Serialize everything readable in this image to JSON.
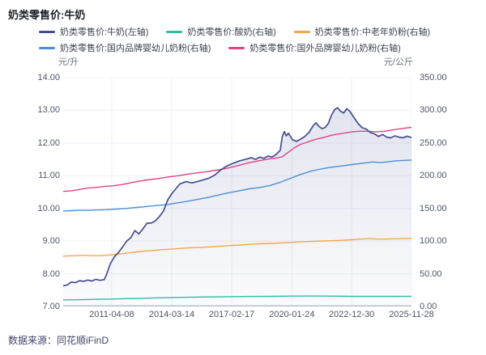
{
  "header": {
    "title": "奶类零售价:牛奶"
  },
  "units": {
    "left": "元/升",
    "right": "元/公斤"
  },
  "source": {
    "label": "数据来源：同花顺iFinD"
  },
  "colors": {
    "milk": "#434e91",
    "yogurt": "#2cbda6",
    "midage_powder": "#f3a44c",
    "domestic_infant_powder": "#4a90d5",
    "foreign_infant_powder": "#e34383",
    "grid": "#edeff6",
    "axis_line": "#b6bdc9",
    "area_fill_top": "rgba(110,122,175,0.20)",
    "area_fill_bottom": "rgba(110,122,175,0.03)"
  },
  "chart_data": {
    "type": "line",
    "title": "奶类零售价:牛奶",
    "x_axis": {
      "range": [
        2008.9,
        2025.91
      ],
      "tick_t": [
        2011.27,
        2014.2,
        2017.13,
        2020.07,
        2022.99,
        2025.91
      ],
      "tick_labels": [
        "2011-04-08",
        "2014-03-14",
        "2017-02-17",
        "2020-01-24",
        "2022-12-30",
        "2025-11-28"
      ]
    },
    "left_axis": {
      "unit": "元/升",
      "min": 7,
      "max": 14,
      "tick_labels": [
        "14.00",
        "13.00",
        "12.00",
        "11.00",
        "10.00",
        "9.00",
        "8.00",
        "7.00"
      ]
    },
    "right_axis": {
      "unit": "元/公斤",
      "min": 0,
      "max": 350,
      "tick_labels": [
        "350.00",
        "300.00",
        "250.00",
        "200.00",
        "150.00",
        "100.00",
        "50.00",
        "0.00"
      ]
    },
    "legend_rows": [
      [
        0,
        1,
        2
      ],
      [
        3,
        4
      ]
    ],
    "draw_order": [
      1,
      2,
      3,
      4,
      0
    ],
    "series": [
      {
        "name": "奶类零售价:牛奶(左轴)",
        "axis": "left",
        "color": "#434e91",
        "area": true,
        "width": 1.7,
        "points": [
          [
            2008.9,
            7.63
          ],
          [
            2009.1,
            7.66
          ],
          [
            2009.3,
            7.75
          ],
          [
            2009.5,
            7.73
          ],
          [
            2009.7,
            7.79
          ],
          [
            2009.9,
            7.77
          ],
          [
            2010.1,
            7.81
          ],
          [
            2010.3,
            7.78
          ],
          [
            2010.5,
            7.83
          ],
          [
            2010.7,
            7.8
          ],
          [
            2010.9,
            7.82
          ],
          [
            2011.0,
            7.95
          ],
          [
            2011.2,
            8.3
          ],
          [
            2011.4,
            8.52
          ],
          [
            2011.6,
            8.65
          ],
          [
            2011.8,
            8.82
          ],
          [
            2012.0,
            9.0
          ],
          [
            2012.2,
            9.1
          ],
          [
            2012.4,
            9.32
          ],
          [
            2012.6,
            9.22
          ],
          [
            2012.8,
            9.38
          ],
          [
            2013.0,
            9.55
          ],
          [
            2013.2,
            9.55
          ],
          [
            2013.4,
            9.62
          ],
          [
            2013.6,
            9.75
          ],
          [
            2013.8,
            9.92
          ],
          [
            2014.0,
            10.25
          ],
          [
            2014.2,
            10.45
          ],
          [
            2014.4,
            10.6
          ],
          [
            2014.6,
            10.75
          ],
          [
            2014.9,
            10.82
          ],
          [
            2015.2,
            10.78
          ],
          [
            2015.6,
            10.85
          ],
          [
            2016.0,
            10.92
          ],
          [
            2016.3,
            11.02
          ],
          [
            2016.6,
            11.18
          ],
          [
            2016.9,
            11.3
          ],
          [
            2017.2,
            11.38
          ],
          [
            2017.5,
            11.45
          ],
          [
            2017.8,
            11.5
          ],
          [
            2018.1,
            11.55
          ],
          [
            2018.3,
            11.5
          ],
          [
            2018.5,
            11.57
          ],
          [
            2018.7,
            11.53
          ],
          [
            2018.9,
            11.6
          ],
          [
            2019.1,
            11.57
          ],
          [
            2019.3,
            11.65
          ],
          [
            2019.5,
            11.78
          ],
          [
            2019.6,
            12.2
          ],
          [
            2019.7,
            12.35
          ],
          [
            2019.8,
            12.22
          ],
          [
            2019.9,
            12.3
          ],
          [
            2020.1,
            12.1
          ],
          [
            2020.3,
            12.05
          ],
          [
            2020.5,
            12.12
          ],
          [
            2020.7,
            12.2
          ],
          [
            2020.9,
            12.32
          ],
          [
            2021.1,
            12.52
          ],
          [
            2021.25,
            12.62
          ],
          [
            2021.4,
            12.5
          ],
          [
            2021.55,
            12.44
          ],
          [
            2021.7,
            12.48
          ],
          [
            2021.85,
            12.6
          ],
          [
            2022.0,
            12.85
          ],
          [
            2022.15,
            13.02
          ],
          [
            2022.3,
            13.08
          ],
          [
            2022.45,
            12.97
          ],
          [
            2022.6,
            12.92
          ],
          [
            2022.75,
            13.05
          ],
          [
            2022.9,
            12.97
          ],
          [
            2023.1,
            12.78
          ],
          [
            2023.3,
            12.6
          ],
          [
            2023.5,
            12.47
          ],
          [
            2023.7,
            12.43
          ],
          [
            2023.9,
            12.32
          ],
          [
            2024.1,
            12.28
          ],
          [
            2024.3,
            12.2
          ],
          [
            2024.5,
            12.26
          ],
          [
            2024.7,
            12.18
          ],
          [
            2024.9,
            12.16
          ],
          [
            2025.1,
            12.22
          ],
          [
            2025.3,
            12.18
          ],
          [
            2025.5,
            12.16
          ],
          [
            2025.7,
            12.21
          ],
          [
            2025.91,
            12.17
          ]
        ]
      },
      {
        "name": "奶类零售价:酸奶(右轴)",
        "axis": "right",
        "color": "#2cbda6",
        "area": false,
        "width": 1.4,
        "points": [
          [
            2008.9,
            10.0
          ],
          [
            2009.5,
            10.3
          ],
          [
            2010.0,
            10.6
          ],
          [
            2011.0,
            11.2
          ],
          [
            2012.0,
            12.0
          ],
          [
            2013.0,
            12.8
          ],
          [
            2014.0,
            13.5
          ],
          [
            2015.0,
            14.1
          ],
          [
            2016.0,
            14.6
          ],
          [
            2017.0,
            15.0
          ],
          [
            2018.0,
            15.3
          ],
          [
            2019.0,
            15.5
          ],
          [
            2020.0,
            15.8
          ],
          [
            2021.0,
            16.0
          ],
          [
            2022.0,
            15.8
          ],
          [
            2023.0,
            15.5
          ],
          [
            2024.0,
            15.4
          ],
          [
            2025.0,
            15.5
          ],
          [
            2025.91,
            15.6
          ]
        ]
      },
      {
        "name": "奶类零售价:中老年奶粉(右轴)",
        "axis": "right",
        "color": "#f3a44c",
        "area": false,
        "width": 1.4,
        "points": [
          [
            2008.9,
            77
          ],
          [
            2009.3,
            77.5
          ],
          [
            2009.7,
            78
          ],
          [
            2010.1,
            78
          ],
          [
            2010.5,
            77.5
          ],
          [
            2010.9,
            78
          ],
          [
            2011.3,
            79
          ],
          [
            2011.7,
            80.5
          ],
          [
            2012.1,
            82
          ],
          [
            2012.5,
            83.5
          ],
          [
            2013.0,
            85
          ],
          [
            2013.5,
            86.2
          ],
          [
            2014.0,
            87.5
          ],
          [
            2014.5,
            88.5
          ],
          [
            2015.0,
            89.5
          ],
          [
            2015.5,
            90.2
          ],
          [
            2016.0,
            91
          ],
          [
            2016.5,
            92
          ],
          [
            2017.0,
            93
          ],
          [
            2017.5,
            94
          ],
          [
            2018.0,
            95
          ],
          [
            2018.5,
            95.8
          ],
          [
            2019.0,
            96.5
          ],
          [
            2019.5,
            97.2
          ],
          [
            2020.0,
            98
          ],
          [
            2020.5,
            98.8
          ],
          [
            2021.0,
            99.5
          ],
          [
            2021.5,
            100
          ],
          [
            2022.0,
            100.5
          ],
          [
            2022.5,
            101.2
          ],
          [
            2023.0,
            102
          ],
          [
            2023.4,
            103
          ],
          [
            2023.8,
            104
          ],
          [
            2024.2,
            103.2
          ],
          [
            2024.6,
            103
          ],
          [
            2025.0,
            103.5
          ],
          [
            2025.5,
            103.8
          ],
          [
            2025.91,
            104
          ]
        ]
      },
      {
        "name": "奶类零售价:国内品牌婴幼儿奶粉(右轴)",
        "axis": "right",
        "color": "#4a90d5",
        "area": false,
        "width": 1.4,
        "points": [
          [
            2008.9,
            146
          ],
          [
            2009.3,
            146.5
          ],
          [
            2009.7,
            147
          ],
          [
            2010.1,
            147
          ],
          [
            2010.5,
            147.5
          ],
          [
            2011.0,
            148
          ],
          [
            2011.5,
            149
          ],
          [
            2012.0,
            150
          ],
          [
            2012.5,
            151.5
          ],
          [
            2013.0,
            153
          ],
          [
            2013.5,
            154.5
          ],
          [
            2014.0,
            156
          ],
          [
            2014.5,
            158.5
          ],
          [
            2015.0,
            161
          ],
          [
            2015.5,
            164
          ],
          [
            2016.0,
            167
          ],
          [
            2016.5,
            170.5
          ],
          [
            2017.0,
            174
          ],
          [
            2017.5,
            177
          ],
          [
            2018.0,
            180
          ],
          [
            2018.5,
            182
          ],
          [
            2019.0,
            185
          ],
          [
            2019.5,
            190
          ],
          [
            2020.0,
            196
          ],
          [
            2020.5,
            202
          ],
          [
            2021.0,
            207
          ],
          [
            2021.3,
            209
          ],
          [
            2021.6,
            211
          ],
          [
            2022.0,
            213
          ],
          [
            2022.5,
            215
          ],
          [
            2023.0,
            217
          ],
          [
            2023.5,
            219
          ],
          [
            2024.0,
            221
          ],
          [
            2024.4,
            220
          ],
          [
            2024.8,
            221.5
          ],
          [
            2025.2,
            223
          ],
          [
            2025.6,
            223.5
          ],
          [
            2025.91,
            224
          ]
        ]
      },
      {
        "name": "奶类零售价:国外品牌婴幼儿奶粉(右轴)",
        "axis": "right",
        "color": "#e34383",
        "area": false,
        "width": 1.4,
        "points": [
          [
            2008.9,
            176
          ],
          [
            2009.3,
            177
          ],
          [
            2009.7,
            179
          ],
          [
            2010.1,
            181
          ],
          [
            2010.5,
            182
          ],
          [
            2010.9,
            183.5
          ],
          [
            2011.3,
            184.5
          ],
          [
            2011.7,
            186
          ],
          [
            2012.1,
            188.5
          ],
          [
            2012.5,
            191
          ],
          [
            2013.0,
            193.5
          ],
          [
            2013.5,
            195.5
          ],
          [
            2014.0,
            198
          ],
          [
            2014.5,
            200
          ],
          [
            2015.0,
            202.5
          ],
          [
            2015.5,
            204.5
          ],
          [
            2016.0,
            206.5
          ],
          [
            2016.5,
            209
          ],
          [
            2017.0,
            212
          ],
          [
            2017.5,
            216
          ],
          [
            2018.0,
            220
          ],
          [
            2018.5,
            223
          ],
          [
            2019.0,
            226
          ],
          [
            2019.3,
            227
          ],
          [
            2019.6,
            229
          ],
          [
            2019.9,
            236
          ],
          [
            2020.2,
            243
          ],
          [
            2020.5,
            248
          ],
          [
            2020.8,
            251
          ],
          [
            2021.1,
            254.5
          ],
          [
            2021.4,
            257
          ],
          [
            2021.7,
            259
          ],
          [
            2022.0,
            262
          ],
          [
            2022.3,
            263.5
          ],
          [
            2022.6,
            265
          ],
          [
            2023.0,
            267
          ],
          [
            2023.4,
            268
          ],
          [
            2023.8,
            268
          ],
          [
            2024.2,
            267
          ],
          [
            2024.6,
            268
          ],
          [
            2025.0,
            270
          ],
          [
            2025.4,
            272
          ],
          [
            2025.91,
            274
          ]
        ]
      }
    ]
  }
}
